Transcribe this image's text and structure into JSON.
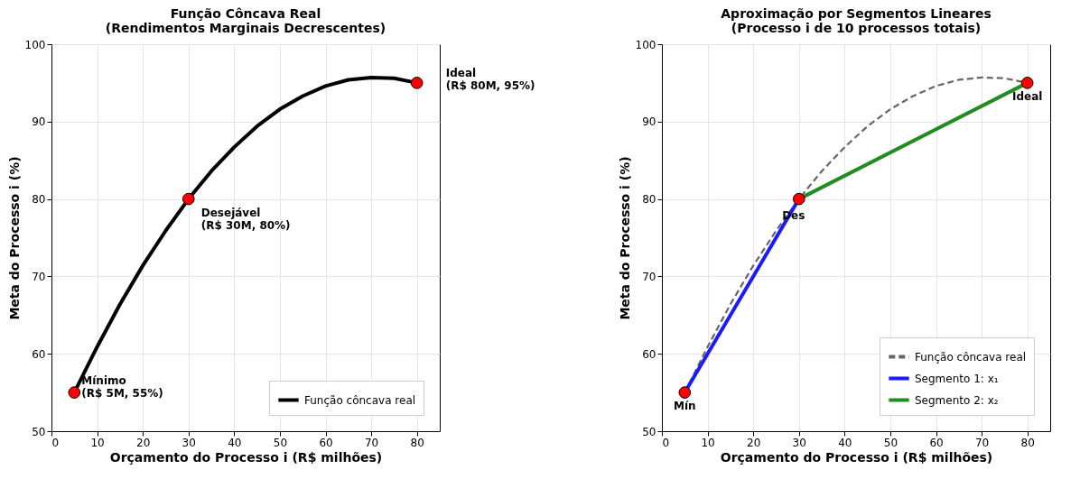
{
  "chart_data": [
    {
      "type": "line",
      "title": "Função Côncava Real\n(Rendimentos Marginais Decrescentes)",
      "xlabel": "Orçamento do Processo i (R$ milhões)",
      "ylabel": "Meta do Processo i (%)",
      "xlim": [
        0,
        85
      ],
      "ylim": [
        50,
        100
      ],
      "xticks": [
        0,
        10,
        20,
        30,
        40,
        50,
        60,
        70,
        80
      ],
      "yticks": [
        50,
        60,
        70,
        80,
        90,
        100
      ],
      "grid": true,
      "legend": "bottom right",
      "series": [
        {
          "type": "line",
          "name": "Função côncava real",
          "color": "#000000",
          "line_style": "solid",
          "x": [
            5,
            10,
            15,
            20,
            25,
            30,
            35,
            40,
            45,
            50,
            55,
            60,
            65,
            70,
            75,
            80
          ],
          "values": [
            55,
            60.9,
            66.4,
            71.4,
            75.9,
            80,
            83.6,
            86.7,
            89.4,
            91.6,
            93.3,
            94.6,
            95.4,
            95.7,
            95.6,
            95
          ]
        },
        {
          "type": "scatter",
          "color": "#ff0000",
          "marker": "circle",
          "x": [
            5,
            30,
            80
          ],
          "values": [
            55,
            80,
            95
          ]
        }
      ],
      "annotations": [
        {
          "text": "Mínimo\n(R$ 5M, 55%)",
          "x": 5,
          "y": 55
        },
        {
          "text": "Desejável\n(R$ 30M, 80%)",
          "x": 30,
          "y": 80
        },
        {
          "text": "Ideal\n(R$ 80M, 95%)",
          "x": 80,
          "y": 95
        }
      ]
    },
    {
      "type": "line",
      "title": "Aproximação por Segmentos Lineares\n(Processo i de 10 processos totais)",
      "xlabel": "Orçamento do Processo i (R$ milhões)",
      "ylabel": "Meta do Processo i (%)",
      "xlim": [
        0,
        85
      ],
      "ylim": [
        50,
        100
      ],
      "xticks": [
        0,
        10,
        20,
        30,
        40,
        50,
        60,
        70,
        80
      ],
      "yticks": [
        50,
        60,
        70,
        80,
        90,
        100
      ],
      "grid": true,
      "legend": "bottom right",
      "series": [
        {
          "type": "line",
          "name": "Função côncava real",
          "color": "#666666",
          "line_style": "dashed",
          "x": [
            5,
            10,
            15,
            20,
            25,
            30,
            35,
            40,
            45,
            50,
            55,
            60,
            65,
            70,
            75,
            80
          ],
          "values": [
            55,
            60.9,
            66.4,
            71.4,
            75.9,
            80,
            83.6,
            86.7,
            89.4,
            91.6,
            93.3,
            94.6,
            95.4,
            95.7,
            95.6,
            95
          ]
        },
        {
          "type": "line",
          "name": "Segmento 1: x₁",
          "color": "#1a1aff",
          "line_style": "solid",
          "x": [
            5,
            30
          ],
          "values": [
            55,
            80
          ]
        },
        {
          "type": "line",
          "name": "Segmento 2: x₂",
          "color": "#228b22",
          "line_style": "solid",
          "x": [
            30,
            80
          ],
          "values": [
            80,
            95
          ]
        },
        {
          "type": "scatter",
          "color": "#ff0000",
          "marker": "circle",
          "x": [
            5,
            30,
            80
          ],
          "values": [
            55,
            80,
            95
          ]
        }
      ],
      "annotations": [
        {
          "text": "Mín",
          "x": 5,
          "y": 55
        },
        {
          "text": "Des",
          "x": 30,
          "y": 80
        },
        {
          "text": "Ideal",
          "x": 80,
          "y": 95
        }
      ]
    }
  ]
}
